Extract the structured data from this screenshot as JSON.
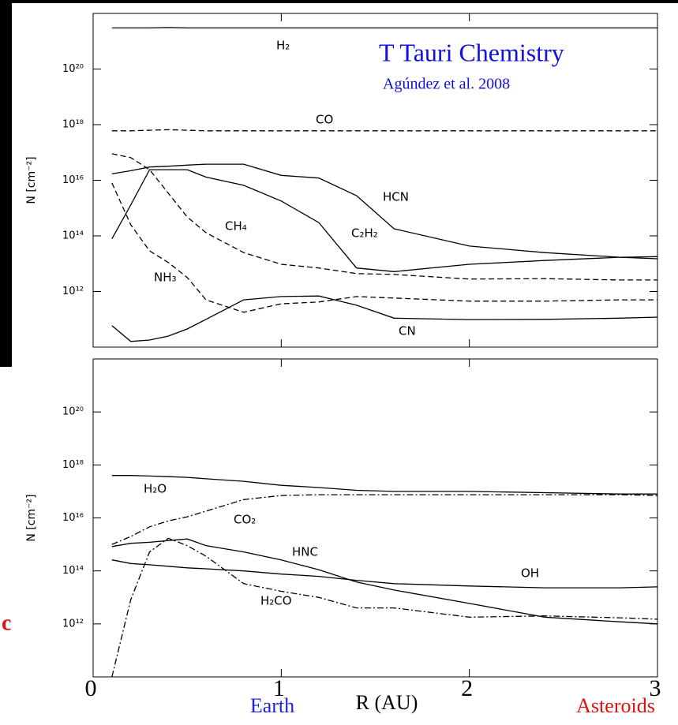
{
  "chart_data": [
    {
      "type": "line",
      "log_y": true,
      "title": "T Tauri Chemistry",
      "subtitle": "Agúndez et al. 2008",
      "title_color": "#1010e0",
      "ylabel": "N [cm⁻²]",
      "x": [
        0.1,
        0.2,
        0.3,
        0.4,
        0.5,
        0.6,
        0.8,
        1.0,
        1.2,
        1.4,
        1.6,
        2.0,
        2.4,
        2.8,
        3.0
      ],
      "xlim": [
        0,
        3
      ],
      "xticks": [
        0,
        1,
        2,
        3
      ],
      "ylim": [
        10000000000.0,
        1e+22
      ],
      "yticks": [
        {
          "value": 1e+20,
          "label": "10²⁰"
        },
        {
          "value": 1e+18,
          "label": "10¹⁸"
        },
        {
          "value": 1e+16,
          "label": "10¹⁶"
        },
        {
          "value": 100000000000000.0,
          "label": "10¹⁴"
        },
        {
          "value": 1000000000000.0,
          "label": "10¹²"
        }
      ],
      "series": [
        {
          "name": "H₂",
          "color": "#000000",
          "dash": "solid",
          "values": [
            3e+21,
            3e+21,
            3e+21,
            3.1e+21,
            3e+21,
            3e+21,
            3e+21,
            3e+21,
            3e+21,
            3e+21,
            3e+21,
            3e+21,
            3e+21,
            3e+21,
            3e+21
          ]
        },
        {
          "name": "CO",
          "color": "#000000",
          "dash": "dashed",
          "values": [
            6e+17,
            6e+17,
            6.3e+17,
            6.6e+17,
            6.3e+17,
            6e+17,
            6e+17,
            6e+17,
            6e+17,
            6e+17,
            6e+17,
            6e+17,
            6e+17,
            6e+17,
            6e+17
          ]
        },
        {
          "name": "HCN",
          "color": "#000000",
          "dash": "solid",
          "values": [
            1.7e+16,
            2.2e+16,
            3e+16,
            3.2e+16,
            3.5e+16,
            3.8e+16,
            3.8e+16,
            1.5e+16,
            1.2e+16,
            2800000000000000.0,
            180000000000000.0,
            43000000000000.0,
            25000000000000.0,
            17000000000000.0,
            15000000000000.0
          ]
        },
        {
          "name": "C₂H₂",
          "color": "#000000",
          "dash": "solid",
          "values": [
            78000000000000.0,
            1300000000000000.0,
            2.4e+16,
            2.4e+16,
            2.4e+16,
            1.3e+16,
            6600000000000000.0,
            1800000000000000.0,
            300000000000000.0,
            7000000000000.0,
            5200000000000.0,
            9500000000000.0,
            13000000000000.0,
            17000000000000.0,
            18000000000000.0
          ]
        },
        {
          "name": "CH₄",
          "color": "#000000",
          "dash": "dashed",
          "values": [
            9e+16,
            6.5e+16,
            2.4e+16,
            3400000000000000.0,
            480000000000000.0,
            130000000000000.0,
            25000000000000.0,
            9500000000000.0,
            7000000000000.0,
            4400000000000.0,
            4100000000000.0,
            2800000000000.0,
            2900000000000.0,
            2600000000000.0,
            2600000000000.0
          ]
        },
        {
          "name": "NH₃",
          "color": "#000000",
          "dash": "dashed",
          "values": [
            8000000000000000.0,
            250000000000000.0,
            29000000000000.0,
            11000000000000.0,
            3200000000000.0,
            500000000000.0,
            180000000000.0,
            360000000000.0,
            420000000000.0,
            660000000000.0,
            580000000000.0,
            450000000000.0,
            450000000000.0,
            500000000000.0,
            500000000000.0
          ]
        },
        {
          "name": "CN",
          "color": "#000000",
          "dash": "solid",
          "values": [
            59000000000.0,
            16000000000.0,
            18000000000.0,
            25000000000.0,
            45000000000.0,
            100000000000.0,
            500000000000.0,
            660000000000.0,
            690000000000.0,
            320000000000.0,
            110000000000.0,
            98000000000.0,
            100000000000.0,
            110000000000.0,
            120000000000.0
          ]
        }
      ]
    },
    {
      "type": "line",
      "log_y": true,
      "ylabel": "N [cm⁻²]",
      "xlabel": "R (AU)",
      "x": [
        0.1,
        0.2,
        0.3,
        0.4,
        0.5,
        0.6,
        0.8,
        1.0,
        1.2,
        1.4,
        1.6,
        2.0,
        2.4,
        2.8,
        3.0
      ],
      "xlim": [
        0,
        3
      ],
      "xticks": [
        0,
        1,
        2,
        3
      ],
      "x_annotations": [
        {
          "text": "Earth",
          "color": "#2020e0"
        },
        {
          "text": "Asteroids",
          "color": "#e01010"
        }
      ],
      "side_fragment": {
        "text": "c",
        "color": "#e01010"
      },
      "ylim": [
        10000000000.0,
        1e+22
      ],
      "yticks": [
        {
          "value": 1e+20,
          "label": "10²⁰"
        },
        {
          "value": 1e+18,
          "label": "10¹⁸"
        },
        {
          "value": 1e+16,
          "label": "10¹⁶"
        },
        {
          "value": 100000000000000.0,
          "label": "10¹⁴"
        },
        {
          "value": 1000000000000.0,
          "label": "10¹²"
        }
      ],
      "series": [
        {
          "name": "H₂O",
          "color": "#000000",
          "dash": "solid",
          "values": [
            4e+17,
            4e+17,
            3.8e+17,
            3.6e+17,
            3.4e+17,
            3e+17,
            2.4e+17,
            1.7e+17,
            1.4e+17,
            1.1e+17,
            1e+17,
            1e+17,
            9e+16,
            8e+16,
            8e+16
          ]
        },
        {
          "name": "CO₂",
          "color": "#000000",
          "dash": "dashdot",
          "values": [
            1000000000000000.0,
            2000000000000000.0,
            4600000000000000.0,
            7700000000000000.0,
            1.1e+16,
            1.8e+16,
            4.9e+16,
            7e+16,
            7.5e+16,
            7.5e+16,
            7.5e+16,
            7.5e+16,
            7.5e+16,
            7.5e+16,
            7e+16
          ]
        },
        {
          "name": "HNC",
          "color": "#000000",
          "dash": "solid",
          "values": [
            830000000000000.0,
            1100000000000000.0,
            1200000000000000.0,
            1400000000000000.0,
            1600000000000000.0,
            900000000000000.0,
            520000000000000.0,
            260000000000000.0,
            110000000000000.0,
            38000000000000.0,
            19000000000000.0,
            5900000000000.0,
            1800000000000.0,
            1200000000000.0,
            1000000000000.0
          ]
        },
        {
          "name": "OH",
          "color": "#000000",
          "dash": "solid",
          "values": [
            260000000000000.0,
            190000000000000.0,
            170000000000000.0,
            150000000000000.0,
            130000000000000.0,
            120000000000000.0,
            100000000000000.0,
            76000000000000.0,
            62000000000000.0,
            44000000000000.0,
            33000000000000.0,
            27000000000000.0,
            23000000000000.0,
            23000000000000.0,
            25000000000000.0
          ]
        },
        {
          "name": "H₂CO",
          "color": "#000000",
          "dash": "dashdot",
          "values": [
            10000000000.0,
            8300000000000.0,
            520000000000000.0,
            1700000000000000.0,
            900000000000000.0,
            360000000000000.0,
            33000000000000.0,
            17000000000000.0,
            10000000000000.0,
            4000000000000.0,
            4000000000000.0,
            1800000000000.0,
            2000000000000.0,
            1700000000000.0,
            1500000000000.0
          ]
        }
      ]
    }
  ]
}
